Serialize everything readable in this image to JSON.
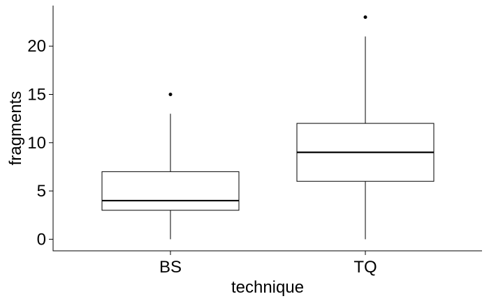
{
  "chart_data": {
    "type": "boxplot",
    "xlabel": "technique",
    "ylabel": "fragments",
    "categories": [
      "BS",
      "TQ"
    ],
    "ylim": [
      -1.2,
      24.2
    ],
    "yticks": [
      0,
      5,
      10,
      15,
      20
    ],
    "grid": false,
    "legend": "none",
    "boxes": [
      {
        "category": "BS",
        "min": 0,
        "q1": 3,
        "median": 4,
        "q3": 7,
        "max": 13,
        "outliers": [
          15
        ]
      },
      {
        "category": "TQ",
        "min": 0,
        "q1": 6,
        "median": 9,
        "q3": 12,
        "max": 21,
        "outliers": [
          23
        ]
      }
    ]
  }
}
